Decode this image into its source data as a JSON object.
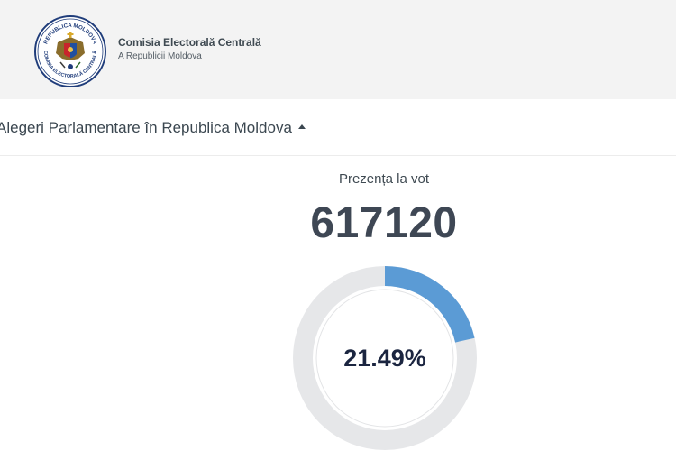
{
  "header": {
    "org_name": "Comisia Electorală Centrală",
    "org_subtitle": "A Republicii Moldova",
    "logo_text_top": "REPUBLICA MOLDOVA",
    "logo_text_bottom": "COMISIA ELECTORALĂ CENTRALĂ"
  },
  "election": {
    "title": "Alegeri Parlamentare în Republica Moldova",
    "caret_icon": "caret-up-icon"
  },
  "turnout": {
    "label": "Prezența la vot",
    "count": "617120",
    "percent_label": "21.49%",
    "percent_value": 21.49,
    "fill_color": "#5b9bd5",
    "track_color": "#e6e7e9"
  }
}
